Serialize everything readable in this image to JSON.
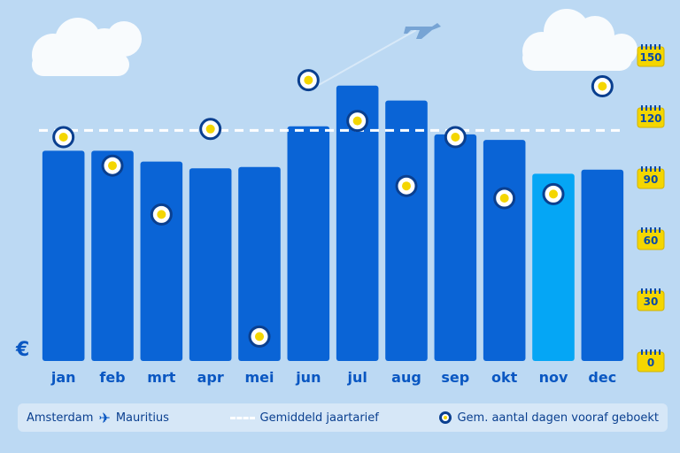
{
  "chart_data": {
    "type": "bar",
    "currency_symbol": "€",
    "categories": [
      "jan",
      "feb",
      "mrt",
      "apr",
      "mei",
      "jun",
      "jul",
      "aug",
      "sep",
      "okt",
      "nov",
      "dec"
    ],
    "highlight_category": "nov",
    "series": [
      {
        "name": "Amsterdam → Mauritius",
        "kind": "bar",
        "values": [
          775,
          775,
          735,
          710,
          715,
          865,
          1015,
          960,
          835,
          815,
          690,
          705
        ]
      },
      {
        "name": "Gem. aantal dagen vooraf geboekt",
        "kind": "points",
        "axis": "right",
        "values": [
          110,
          96,
          72,
          114,
          12,
          138,
          118,
          86,
          110,
          80,
          82,
          135
        ]
      }
    ],
    "reference_line": {
      "name": "Gemiddeld jaartarief",
      "value": 850
    },
    "right_axis": {
      "ticks": [
        0,
        30,
        60,
        90,
        120,
        150
      ],
      "range": [
        0,
        160
      ]
    },
    "left_axis_range": [
      0,
      1200
    ],
    "grid": false,
    "legend_position": "bottom"
  },
  "legend": {
    "origin": "Amsterdam",
    "plane_icon": "airplane-icon",
    "destination": "Mauritius",
    "average_label": "Gemiddeld jaartarief",
    "points_label": "Gem. aantal dagen vooraf geboekt"
  },
  "colors": {
    "background": "#bcd9f3",
    "bar": "#0a64d6",
    "bar_highlight": "#05a6f5",
    "marker_ring": "#0a3f8f",
    "marker_center": "#f4d600",
    "calendar": "#f4d600"
  }
}
